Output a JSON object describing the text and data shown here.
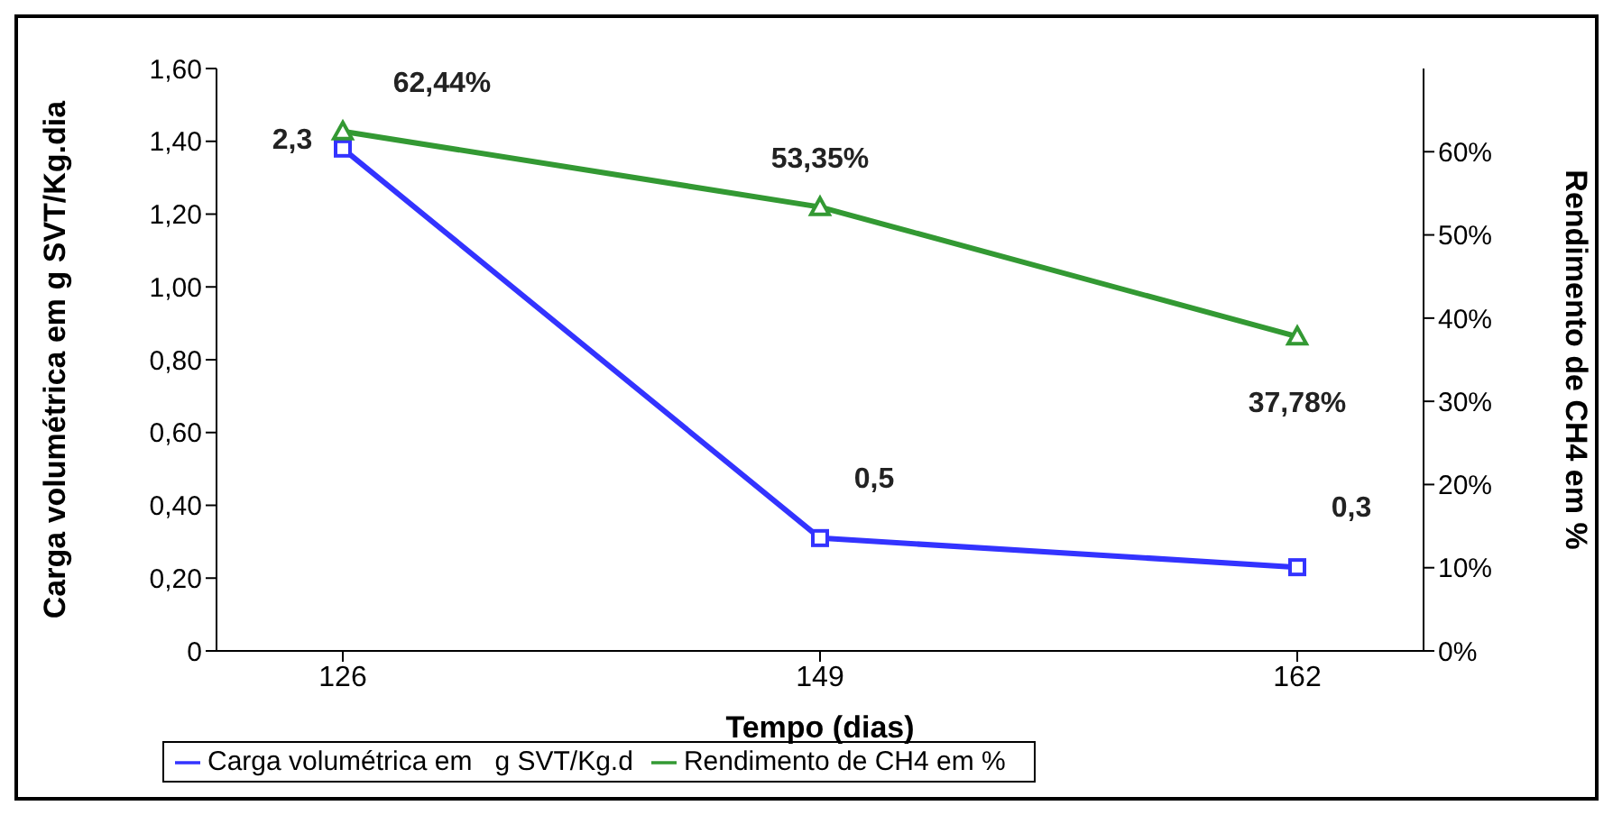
{
  "chart_data": {
    "type": "line",
    "xlabel": "Tempo (dias)",
    "ylabel": "Carga volumétrica em g SVT/Kg.dia",
    "y2label": "Rendimento de CH4 em %",
    "categories": [
      "126",
      "149",
      "162"
    ],
    "series": [
      {
        "name": "Carga volumétrica em   g SVT/Kg.d",
        "color": "#3333ff",
        "values": [
          1.38,
          0.31,
          0.23
        ],
        "marker": "square"
      },
      {
        "name": "Rendimento de CH4 em %",
        "color": "#339933",
        "values": [
          62.44,
          53.35,
          37.78
        ],
        "value_labels": [
          "62,44%",
          "53,35%",
          "37,78%"
        ],
        "marker": "triangle",
        "axis": "y2"
      }
    ],
    "ylim": [
      0,
      1.6
    ],
    "yticks": [
      {
        "value": 0,
        "label": "0"
      },
      {
        "value": 0.2,
        "label": "0,20"
      },
      {
        "value": 0.4,
        "label": "0,40"
      },
      {
        "value": 0.6,
        "label": "0,60"
      },
      {
        "value": 0.8,
        "label": "0,80"
      },
      {
        "value": 1,
        "label": "1,00"
      },
      {
        "value": 1.2,
        "label": "1,20"
      },
      {
        "value": 1.4,
        "label": "1,40"
      },
      {
        "value": 1.6,
        "label": "1,60"
      }
    ],
    "y2lim": [
      0,
      70
    ],
    "y2ticks": [
      {
        "value": 0,
        "label": "0%"
      },
      {
        "value": 10,
        "label": "10%"
      },
      {
        "value": 20,
        "label": "20%"
      },
      {
        "value": 30,
        "label": "30%"
      },
      {
        "value": 40,
        "label": "40%"
      },
      {
        "value": 50,
        "label": "50%"
      },
      {
        "value": 60,
        "label": "60%"
      }
    ],
    "annotations": [
      {
        "text": "2,3",
        "x": "126",
        "y": 1.38
      },
      {
        "text": "0,5",
        "x": "149",
        "y": 0.31
      },
      {
        "text": "0,3",
        "x": "162",
        "y": 0.23
      }
    ],
    "legend": "bottom",
    "grid": false
  }
}
